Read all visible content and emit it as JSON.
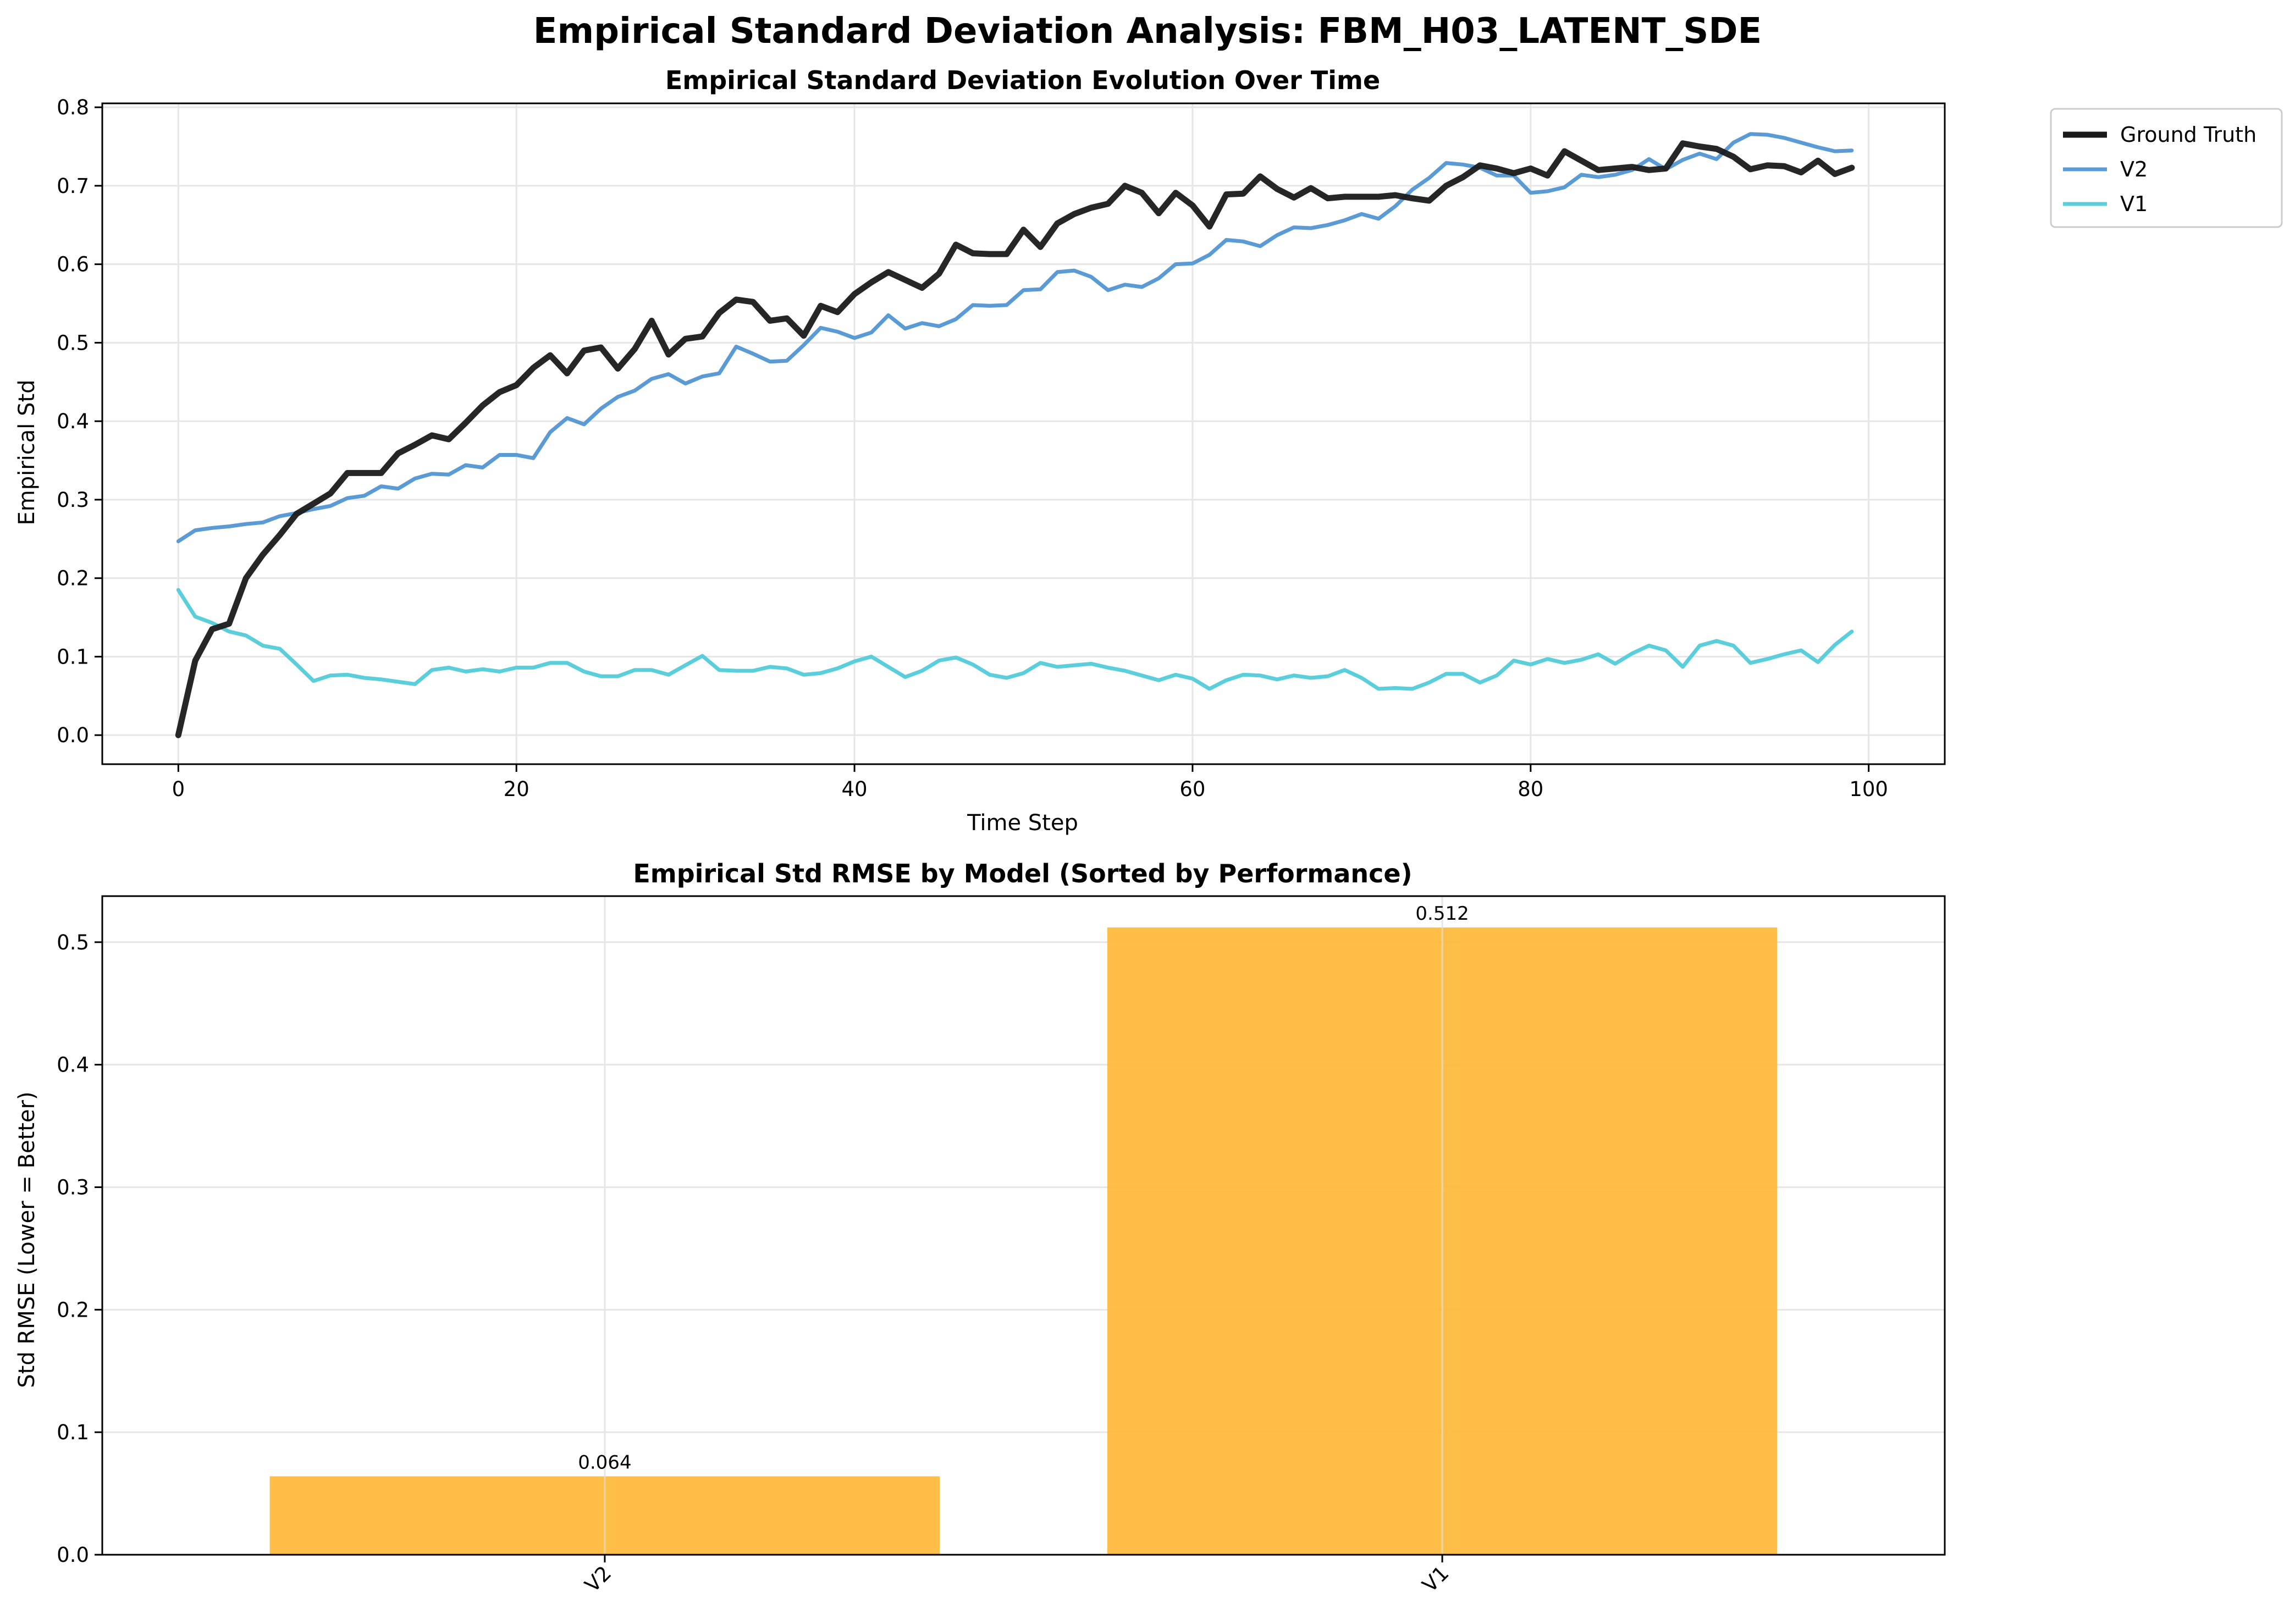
{
  "figure": {
    "suptitle": "Empirical Standard Deviation Analysis: FBM_H03_LATENT_SDE"
  },
  "chart_data": [
    {
      "type": "line",
      "title": "Empirical Standard Deviation Evolution Over Time",
      "xlabel": "Time Step",
      "ylabel": "Empirical Std",
      "xlim": [
        -4.5,
        104.5
      ],
      "ylim": [
        -0.037,
        0.805
      ],
      "xticks": [
        0,
        20,
        40,
        60,
        80,
        100
      ],
      "yticks": [
        0.0,
        0.1,
        0.2,
        0.3,
        0.4,
        0.5,
        0.6,
        0.7,
        0.8
      ],
      "ytick_labels": [
        "0.0",
        "0.1",
        "0.2",
        "0.3",
        "0.4",
        "0.5",
        "0.6",
        "0.7",
        "0.8"
      ],
      "grid": true,
      "legend": "outside-top-right",
      "series": [
        {
          "name": "Ground Truth",
          "color": "#1a1a1a",
          "width": "thick",
          "values": [
            0.0,
            0.095,
            0.135,
            0.142,
            0.2,
            0.23,
            0.255,
            0.282,
            0.295,
            0.308,
            0.334,
            0.334,
            0.334,
            0.359,
            0.37,
            0.382,
            0.377,
            0.398,
            0.42,
            0.437,
            0.446,
            0.468,
            0.484,
            0.461,
            0.49,
            0.494,
            0.467,
            0.492,
            0.528,
            0.485,
            0.505,
            0.508,
            0.538,
            0.555,
            0.552,
            0.528,
            0.531,
            0.509,
            0.547,
            0.539,
            0.562,
            0.577,
            0.59,
            0.58,
            0.57,
            0.588,
            0.625,
            0.614,
            0.613,
            0.613,
            0.644,
            0.622,
            0.652,
            0.664,
            0.672,
            0.677,
            0.7,
            0.691,
            0.665,
            0.691,
            0.675,
            0.648,
            0.689,
            0.69,
            0.712,
            0.696,
            0.685,
            0.697,
            0.684,
            0.686,
            0.686,
            0.686,
            0.688,
            0.684,
            0.681,
            0.7,
            0.711,
            0.726,
            0.722,
            0.716,
            0.722,
            0.713,
            0.744,
            0.732,
            0.72,
            0.722,
            0.724,
            0.72,
            0.722,
            0.754,
            0.75,
            0.747,
            0.737,
            0.721,
            0.726,
            0.725,
            0.717,
            0.732,
            0.715,
            0.723
          ]
        },
        {
          "name": "V2",
          "color": "#5b9bd5",
          "width": "normal",
          "values": [
            0.247,
            0.261,
            0.264,
            0.266,
            0.269,
            0.271,
            0.279,
            0.283,
            0.288,
            0.292,
            0.302,
            0.305,
            0.317,
            0.314,
            0.327,
            0.333,
            0.332,
            0.344,
            0.341,
            0.357,
            0.357,
            0.353,
            0.386,
            0.404,
            0.396,
            0.416,
            0.431,
            0.439,
            0.454,
            0.46,
            0.448,
            0.457,
            0.461,
            0.495,
            0.486,
            0.476,
            0.477,
            0.497,
            0.519,
            0.514,
            0.506,
            0.513,
            0.535,
            0.518,
            0.525,
            0.521,
            0.53,
            0.548,
            0.547,
            0.548,
            0.567,
            0.568,
            0.59,
            0.592,
            0.584,
            0.567,
            0.574,
            0.571,
            0.582,
            0.6,
            0.601,
            0.612,
            0.631,
            0.629,
            0.623,
            0.637,
            0.647,
            0.646,
            0.65,
            0.656,
            0.664,
            0.658,
            0.674,
            0.695,
            0.71,
            0.729,
            0.727,
            0.723,
            0.713,
            0.713,
            0.691,
            0.693,
            0.698,
            0.714,
            0.711,
            0.714,
            0.72,
            0.734,
            0.721,
            0.733,
            0.741,
            0.734,
            0.755,
            0.766,
            0.765,
            0.761,
            0.755,
            0.749,
            0.744,
            0.745
          ]
        },
        {
          "name": "V1",
          "color": "#5acfdb",
          "width": "normal",
          "values": [
            0.185,
            0.151,
            0.143,
            0.132,
            0.127,
            0.114,
            0.11,
            0.09,
            0.069,
            0.076,
            0.077,
            0.073,
            0.071,
            0.068,
            0.065,
            0.083,
            0.086,
            0.081,
            0.084,
            0.081,
            0.086,
            0.086,
            0.092,
            0.092,
            0.081,
            0.075,
            0.075,
            0.083,
            0.083,
            0.077,
            0.089,
            0.101,
            0.083,
            0.082,
            0.082,
            0.087,
            0.085,
            0.077,
            0.079,
            0.085,
            0.094,
            0.1,
            0.087,
            0.074,
            0.082,
            0.095,
            0.099,
            0.09,
            0.077,
            0.073,
            0.079,
            0.092,
            0.087,
            0.089,
            0.091,
            0.086,
            0.082,
            0.076,
            0.07,
            0.077,
            0.072,
            0.059,
            0.07,
            0.077,
            0.076,
            0.071,
            0.076,
            0.073,
            0.075,
            0.083,
            0.073,
            0.059,
            0.06,
            0.059,
            0.067,
            0.078,
            0.078,
            0.067,
            0.076,
            0.095,
            0.09,
            0.097,
            0.092,
            0.096,
            0.103,
            0.091,
            0.104,
            0.114,
            0.108,
            0.087,
            0.114,
            0.12,
            0.114,
            0.092,
            0.097,
            0.103,
            0.108,
            0.093,
            0.115,
            0.132
          ]
        }
      ]
    },
    {
      "type": "bar",
      "title": "Empirical Std RMSE by Model (Sorted by Performance)",
      "xlabel": "",
      "ylabel": "Std RMSE (Lower = Better)",
      "categories": [
        "V2",
        "V1"
      ],
      "values": [
        0.064,
        0.512
      ],
      "value_labels": [
        "0.064",
        "0.512"
      ],
      "bar_color": "#ffb733",
      "ylim": [
        0,
        0.5376
      ],
      "yticks": [
        0.0,
        0.1,
        0.2,
        0.3,
        0.4,
        0.5
      ],
      "ytick_labels": [
        "0.0",
        "0.1",
        "0.2",
        "0.3",
        "0.4",
        "0.5"
      ],
      "xtick_rotation": 45,
      "grid": true
    }
  ]
}
